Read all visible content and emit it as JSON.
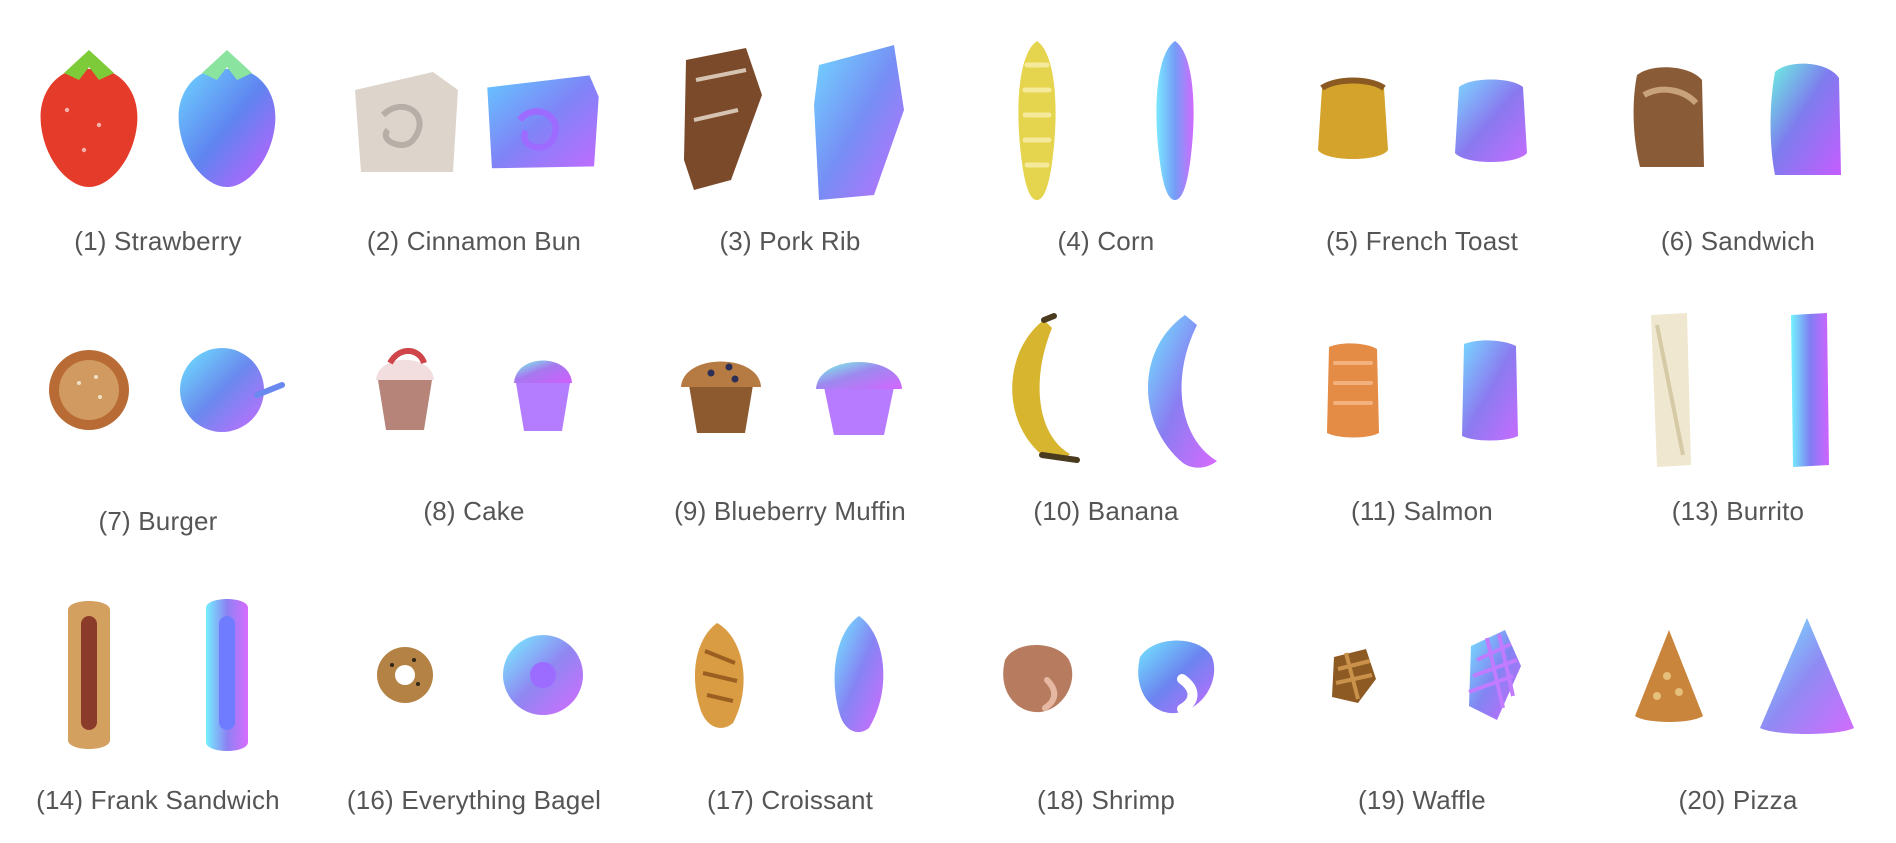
{
  "items": [
    {
      "label": "(1) Strawberry",
      "photo_color": "#e53b2b",
      "normal_color": "#5f84f0",
      "photo_icon": "strawberry-photo",
      "normal_icon": "strawberry-normal-map"
    },
    {
      "label": "(2) Cinnamon Bun",
      "photo_color": "#ddd5cb",
      "normal_color": "#7f84f7",
      "photo_icon": "cinnamon-bun-photo",
      "normal_icon": "cinnamon-bun-normal-map"
    },
    {
      "label": "(3) Pork Rib",
      "photo_color": "#7a4a2b",
      "normal_color": "#768ef5",
      "photo_icon": "pork-rib-photo",
      "normal_icon": "pork-rib-normal-map"
    },
    {
      "label": "(4) Corn",
      "photo_color": "#e5d44e",
      "normal_color": "#759df7",
      "photo_icon": "corn-photo",
      "normal_icon": "corn-normal-map"
    },
    {
      "label": "(5) French Toast",
      "photo_color": "#d3a32c",
      "normal_color": "#8979ef",
      "photo_icon": "french-toast-photo",
      "normal_icon": "french-toast-normal-map"
    },
    {
      "label": "(6) Sandwich",
      "photo_color": "#8a5b37",
      "normal_color": "#7e7cee",
      "photo_icon": "sandwich-photo",
      "normal_icon": "sandwich-normal-map"
    },
    {
      "label": "(7) Burger",
      "photo_color": "#b86b35",
      "normal_color": "#6a89ee",
      "photo_icon": "burger-photo",
      "normal_icon": "burger-normal-map"
    },
    {
      "label": "(8) Cake",
      "photo_color": "#d7b2ae",
      "normal_color": "#a678ef",
      "photo_icon": "cake-photo",
      "normal_icon": "cake-normal-map"
    },
    {
      "label": "(9) Blueberry Muffin",
      "photo_color": "#b57b43",
      "normal_color": "#9d89ef",
      "photo_icon": "blueberry-muffin-photo",
      "normal_icon": "blueberry-muffin-normal-map"
    },
    {
      "label": "(10) Banana",
      "photo_color": "#d8b52f",
      "normal_color": "#8a7df2",
      "photo_icon": "banana-photo",
      "normal_icon": "banana-normal-map"
    },
    {
      "label": "(11) Salmon",
      "photo_color": "#e48b45",
      "normal_color": "#8b7bf0",
      "photo_icon": "salmon-photo",
      "normal_icon": "salmon-normal-map"
    },
    {
      "label": "(13) Burrito",
      "photo_color": "#efe7cf",
      "normal_color": "#807ff3",
      "photo_icon": "burrito-photo",
      "normal_icon": "burrito-normal-map"
    },
    {
      "label": "(14) Frank Sandwich",
      "photo_color": "#d4a05f",
      "normal_color": "#8c82f2",
      "photo_icon": "frank-sandwich-photo",
      "normal_icon": "frank-sandwich-normal-map"
    },
    {
      "label": "(16) Everything Bagel",
      "photo_color": "#b48244",
      "normal_color": "#8f87f2",
      "photo_icon": "everything-bagel-photo",
      "normal_icon": "everything-bagel-normal-map"
    },
    {
      "label": "(17) Croissant",
      "photo_color": "#d99c43",
      "normal_color": "#8584f4",
      "photo_icon": "croissant-photo",
      "normal_icon": "croissant-normal-map"
    },
    {
      "label": "(18) Shrimp",
      "photo_color": "#b77c60",
      "normal_color": "#6c84f0",
      "photo_icon": "shrimp-photo",
      "normal_icon": "shrimp-normal-map"
    },
    {
      "label": "(19) Waffle",
      "photo_color": "#8d5a24",
      "normal_color": "#8284f2",
      "photo_icon": "waffle-photo",
      "normal_icon": "waffle-normal-map"
    },
    {
      "label": "(20) Pizza",
      "photo_color": "#c9853b",
      "normal_color": "#8f8bf3",
      "photo_icon": "pizza-photo",
      "normal_icon": "pizza-normal-map"
    }
  ]
}
